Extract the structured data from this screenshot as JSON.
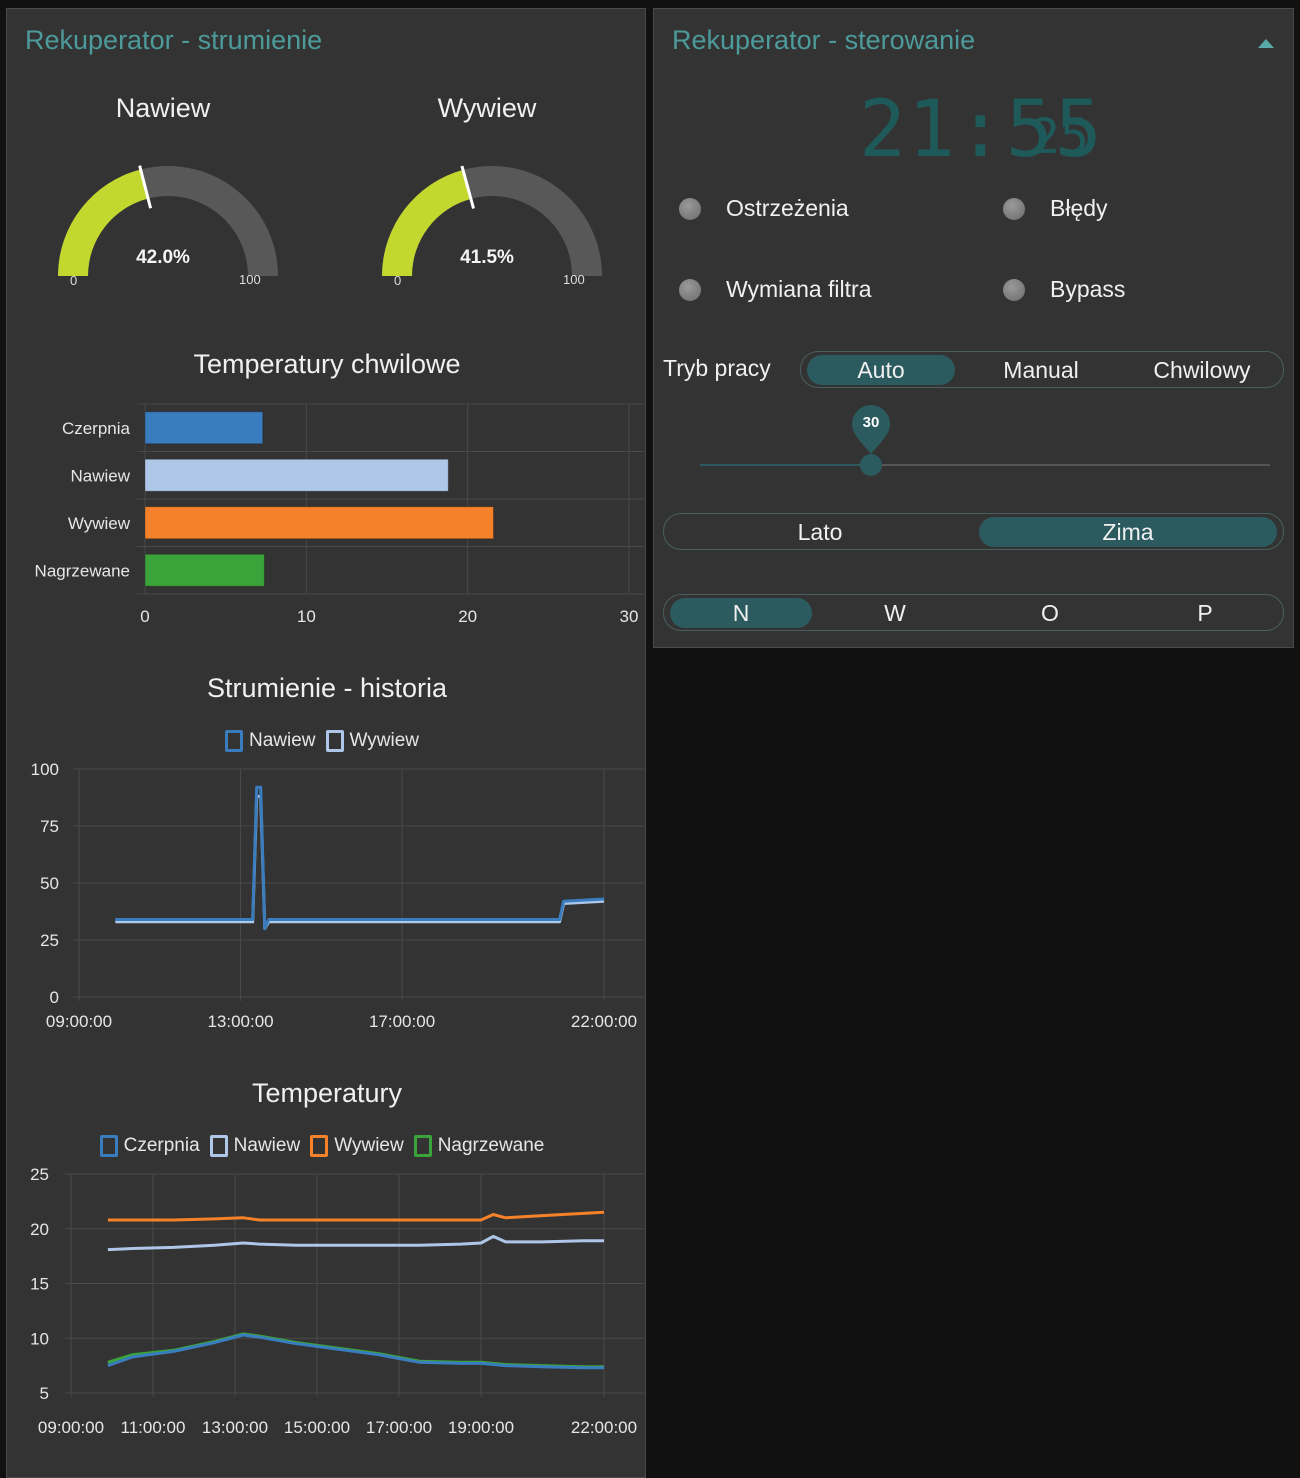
{
  "left": {
    "title": "Rekuperator - strumienie",
    "gauges": [
      {
        "title": "Nawiew",
        "value_text": "42.0%",
        "value": 42.0,
        "min": "0",
        "max": "100"
      },
      {
        "title": "Wywiew",
        "value_text": "41.5%",
        "value": 41.5,
        "min": "0",
        "max": "100"
      }
    ],
    "colors": {
      "gauge_fill": "#c3d82f",
      "gauge_track": "#585858",
      "needle": "#ffffff"
    }
  },
  "right": {
    "title": "Rekuperator - sterowanie",
    "collapse_icon": "triangle-up-icon",
    "clock": {
      "hm": "21:55",
      "sec": "25"
    },
    "leds": [
      {
        "label": "Ostrzeżenia"
      },
      {
        "label": "Błędy"
      },
      {
        "label": "Wymiana filtra"
      },
      {
        "label": "Bypass"
      }
    ],
    "mode": {
      "label": "Tryb pracy",
      "options": [
        "Auto",
        "Manual",
        "Chwilowy"
      ],
      "selected": "Auto"
    },
    "slider": {
      "value": "30",
      "fraction": 0.3
    },
    "season": {
      "options": [
        "Lato",
        "Zima"
      ],
      "selected": "Zima"
    },
    "direction": {
      "options": [
        "N",
        "W",
        "O",
        "P"
      ],
      "selected": "N"
    }
  },
  "chart_data": [
    {
      "type": "bar",
      "title": "Temperatury chwilowe",
      "orientation": "horizontal",
      "categories": [
        "Czerpnia",
        "Nawiew",
        "Wywiew",
        "Nagrzewane"
      ],
      "values": [
        7.3,
        18.8,
        21.6,
        7.4
      ],
      "colors": [
        "#3a7dbf",
        "#aec6e8",
        "#f5822a",
        "#3aa33a"
      ],
      "xlim": [
        0,
        30
      ],
      "xticks": [
        "0",
        "10",
        "20",
        "30"
      ]
    },
    {
      "type": "line",
      "title": "Strumienie - historia",
      "legend": [
        "Nawiew",
        "Wywiew"
      ],
      "colors": [
        "#3a7dbf",
        "#aec6e8"
      ],
      "ylim": [
        0,
        100
      ],
      "yticks": [
        "100",
        "75",
        "50",
        "25",
        "0"
      ],
      "xticks": [
        "09:00:00",
        "13:00:00",
        "17:00:00",
        "22:00:00"
      ],
      "x_hours": [
        9.9,
        13.3,
        13.4,
        13.5,
        13.6,
        13.7,
        20.9,
        21.0,
        22.0
      ],
      "series": [
        {
          "name": "Nawiew",
          "values": [
            34,
            34,
            92,
            92,
            30,
            34,
            34,
            42,
            43
          ]
        },
        {
          "name": "Wywiew",
          "values": [
            33,
            33,
            88,
            88,
            30,
            33,
            33,
            41,
            42
          ]
        }
      ]
    },
    {
      "type": "line",
      "title": "Temperatury",
      "legend": [
        "Czerpnia",
        "Nawiew",
        "Wywiew",
        "Nagrzewane"
      ],
      "colors": [
        "#3a7dbf",
        "#aec6e8",
        "#f5822a",
        "#3aa33a"
      ],
      "ylim": [
        5,
        25
      ],
      "yticks": [
        "25",
        "20",
        "15",
        "10",
        "5"
      ],
      "xticks": [
        "09:00:00",
        "11:00:00",
        "13:00:00",
        "15:00:00",
        "17:00:00",
        "19:00:00",
        "22:00:00"
      ],
      "x_hours": [
        9.9,
        10.5,
        11.5,
        12.5,
        13.2,
        13.6,
        14.5,
        15.5,
        16.5,
        17.5,
        18.5,
        19.0,
        19.3,
        19.6,
        20.5,
        21.5,
        22.0
      ],
      "series": [
        {
          "name": "Czerpnia",
          "values": [
            7.5,
            8.3,
            8.8,
            9.6,
            10.3,
            10.1,
            9.5,
            9.0,
            8.5,
            7.8,
            7.7,
            7.7,
            7.6,
            7.5,
            7.4,
            7.3,
            7.3
          ]
        },
        {
          "name": "Nawiew",
          "values": [
            18.1,
            18.2,
            18.3,
            18.5,
            18.7,
            18.6,
            18.5,
            18.5,
            18.5,
            18.5,
            18.6,
            18.7,
            19.3,
            18.8,
            18.8,
            18.9,
            18.9
          ]
        },
        {
          "name": "Wywiew",
          "values": [
            20.8,
            20.8,
            20.8,
            20.9,
            21.0,
            20.8,
            20.8,
            20.8,
            20.8,
            20.8,
            20.8,
            20.8,
            21.3,
            21.0,
            21.2,
            21.4,
            21.5
          ]
        },
        {
          "name": "Nagrzewane",
          "values": [
            7.8,
            8.5,
            8.9,
            9.7,
            10.4,
            10.2,
            9.6,
            9.1,
            8.6,
            7.9,
            7.8,
            7.8,
            7.7,
            7.6,
            7.5,
            7.4,
            7.4
          ]
        }
      ]
    }
  ]
}
